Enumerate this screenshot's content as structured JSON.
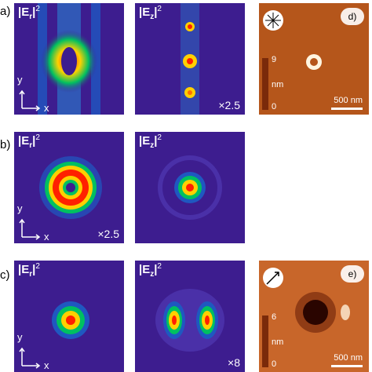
{
  "rows": [
    {
      "label": "a)",
      "er": {
        "name": "E",
        "sub": "r",
        "sup": "2",
        "multiplier": ""
      },
      "ez": {
        "name": "E",
        "sub": "z",
        "sup": "2",
        "multiplier": "×2.5"
      },
      "afm": {
        "badge": "d)",
        "cbar_max": "9",
        "cbar_min": "0",
        "unit": "nm",
        "scale": "500 nm"
      }
    },
    {
      "label": "b)",
      "er": {
        "name": "E",
        "sub": "r",
        "sup": "2",
        "multiplier": "×2.5"
      },
      "ez": {
        "name": "E",
        "sub": "z",
        "sup": "2",
        "multiplier": ""
      }
    },
    {
      "label": "c)",
      "er": {
        "name": "E",
        "sub": "r",
        "sup": "2",
        "multiplier": ""
      },
      "ez": {
        "name": "E",
        "sub": "z",
        "sup": "2",
        "multiplier": "×8"
      },
      "afm": {
        "badge": "e)",
        "cbar_max": "6",
        "cbar_min": "0",
        "unit": "nm",
        "scale": "500 nm"
      }
    }
  ],
  "axes": {
    "x": "x",
    "y": "y"
  },
  "colors": {
    "field_bg": "#3d1d8f",
    "afm_bg": "#b5561b"
  }
}
